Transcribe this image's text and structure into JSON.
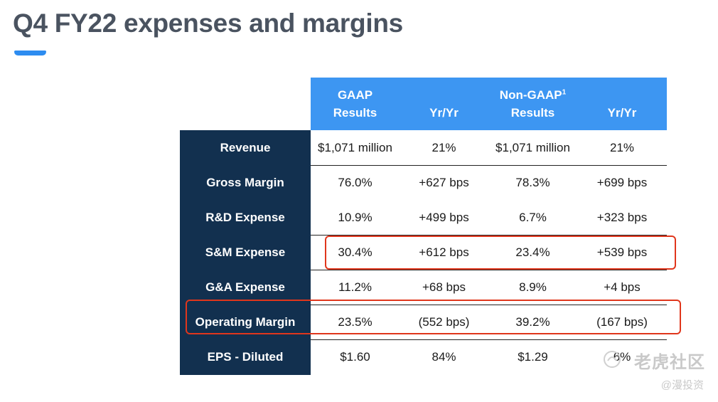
{
  "title": "Q4 FY22 expenses and margins",
  "colors": {
    "title": "#4a5360",
    "accent": "#2d8cf0",
    "header_band": "#3d96f2",
    "label_column": "#12304f",
    "highlight": "#e0361c"
  },
  "table": {
    "headers": {
      "gaap_line1": "GAAP",
      "gaap_line2": "Results",
      "gaap_yoy": "Yr/Yr",
      "nongaap_line1": "Non-GAAP",
      "nongaap_footnote": "1",
      "nongaap_line2": "Results",
      "nongaap_yoy": "Yr/Yr"
    },
    "rows": [
      {
        "label": "Revenue",
        "gaap": "$1,071 million",
        "gaap_yoy": "21%",
        "nongaap": "$1,071 million",
        "nongaap_yoy": "21%"
      },
      {
        "label": "Gross Margin",
        "gaap": "76.0%",
        "gaap_yoy": "+627 bps",
        "nongaap": "78.3%",
        "nongaap_yoy": "+699 bps"
      },
      {
        "label": "R&D Expense",
        "gaap": "10.9%",
        "gaap_yoy": "+499 bps",
        "nongaap": "6.7%",
        "nongaap_yoy": "+323 bps"
      },
      {
        "label": "S&M Expense",
        "gaap": "30.4%",
        "gaap_yoy": "+612 bps",
        "nongaap": "23.4%",
        "nongaap_yoy": "+539 bps"
      },
      {
        "label": "G&A Expense",
        "gaap": "11.2%",
        "gaap_yoy": "+68 bps",
        "nongaap": "8.9%",
        "nongaap_yoy": "+4 bps"
      },
      {
        "label": "Operating Margin",
        "gaap": "23.5%",
        "gaap_yoy": "(552 bps)",
        "nongaap": "39.2%",
        "nongaap_yoy": "(167 bps)"
      },
      {
        "label": "EPS - Diluted",
        "gaap": "$1.60",
        "gaap_yoy": "84%",
        "nongaap": "$1.29",
        "nongaap_yoy": "6%"
      }
    ]
  },
  "watermark": {
    "main": "老虎社区",
    "sub": "@漫投资",
    "icon": "tiger-logo-icon"
  }
}
